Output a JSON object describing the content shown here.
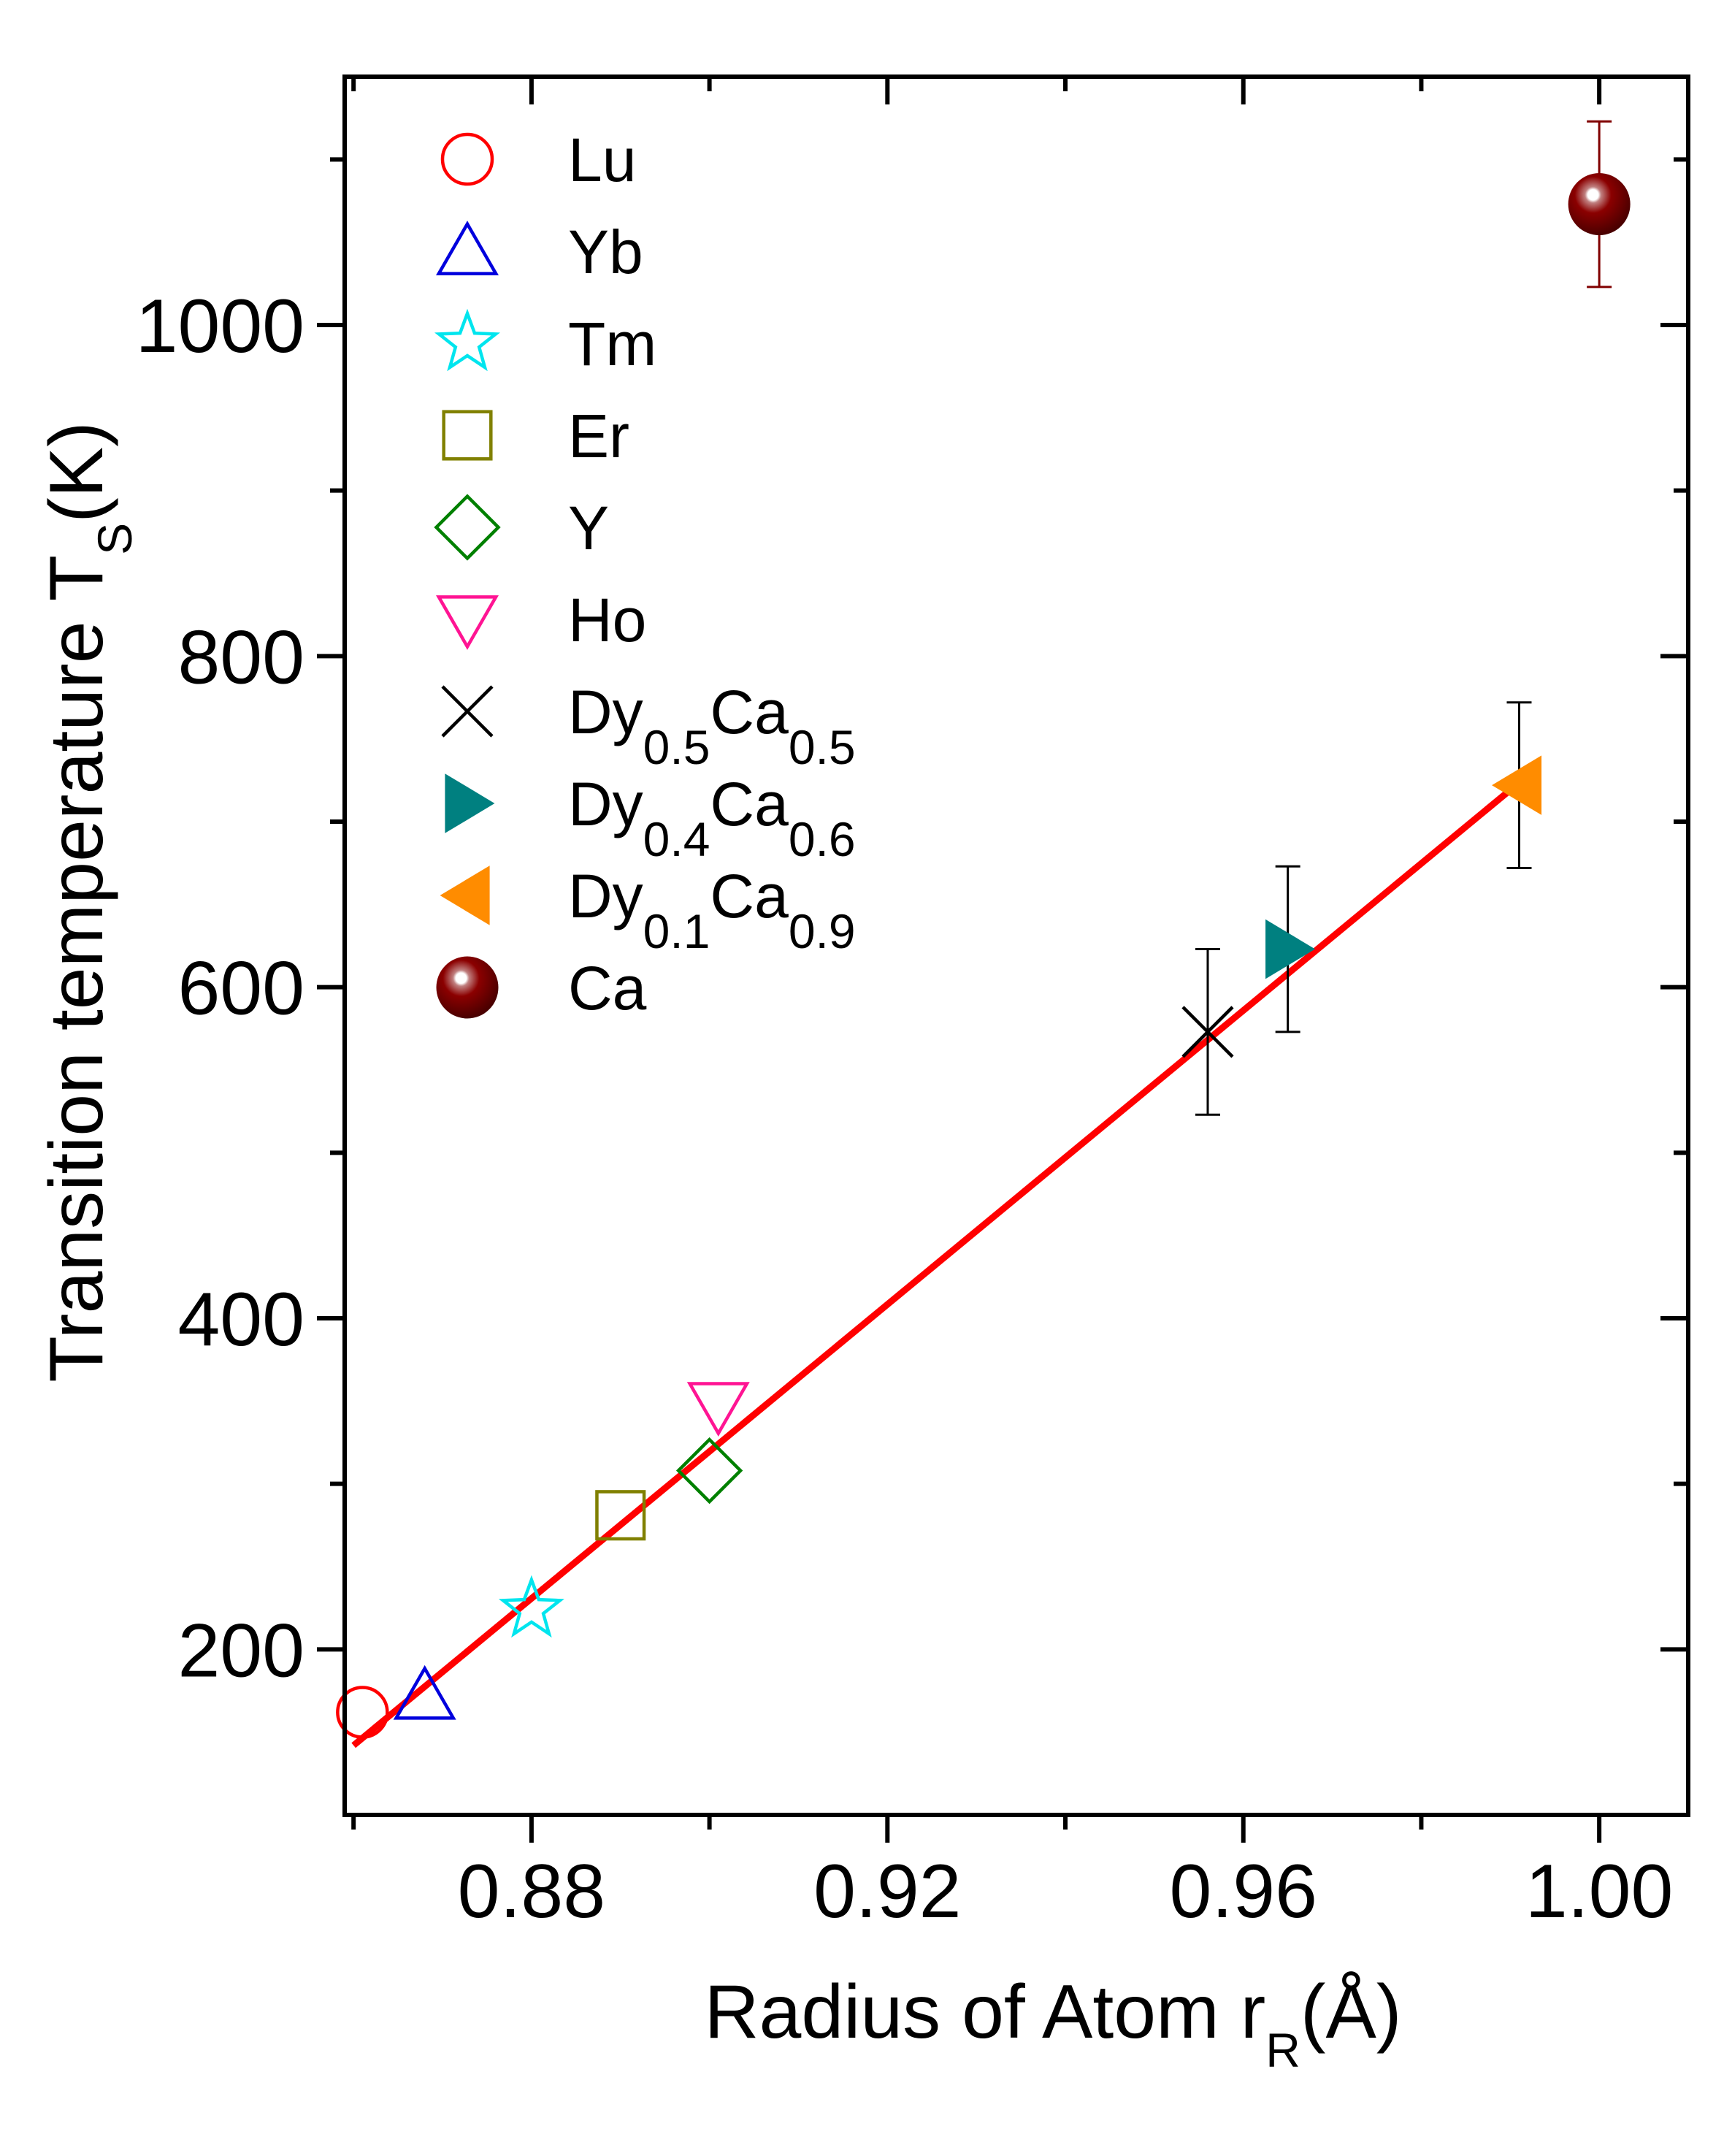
{
  "chart_data": {
    "type": "scatter",
    "xlabel": {
      "main": "Radius of Atom r",
      "sub": "R",
      "tail": "(Å)"
    },
    "ylabel": {
      "main": "Transition temperature T",
      "sub": "S",
      "tail": "(K)"
    },
    "xlim": [
      0.859,
      1.01
    ],
    "ylim": [
      100,
      1150
    ],
    "xticks": [
      0.88,
      0.92,
      0.96,
      1.0
    ],
    "xtick_labels": [
      "0.88",
      "0.92",
      "0.96",
      "1.00"
    ],
    "xminor": [
      0.86,
      0.9,
      0.94,
      0.98
    ],
    "yticks": [
      200,
      400,
      600,
      800,
      1000
    ],
    "ytick_labels": [
      "200",
      "400",
      "600",
      "800",
      "1000"
    ],
    "yminor": [
      300,
      500,
      700,
      900,
      1100
    ],
    "legend_position": "top-left",
    "series": [
      {
        "name": "Lu",
        "label": {
          "base": "Lu"
        },
        "marker": "circle-open",
        "color": "#ff0000",
        "x": 0.861,
        "y": 162
      },
      {
        "name": "Yb",
        "label": {
          "base": "Yb"
        },
        "marker": "triangle-up-open",
        "color": "#0000dd",
        "x": 0.868,
        "y": 172
      },
      {
        "name": "Tm",
        "label": {
          "base": "Tm"
        },
        "marker": "star-open",
        "color": "#00e5ee",
        "x": 0.88,
        "y": 224
      },
      {
        "name": "Er",
        "label": {
          "base": "Er"
        },
        "marker": "square-open",
        "color": "#808000",
        "x": 0.89,
        "y": 281
      },
      {
        "name": "Y",
        "label": {
          "base": "Y"
        },
        "marker": "diamond-open",
        "color": "#008000",
        "x": 0.9,
        "y": 308
      },
      {
        "name": "Ho",
        "label": {
          "base": "Ho"
        },
        "marker": "triangle-down-open",
        "color": "#ff1493",
        "x": 0.901,
        "y": 347
      },
      {
        "name": "Dy0.5Ca0.5",
        "label": {
          "base": "Dy",
          "s1": "0.5",
          "mid": "Ca",
          "s2": "0.5"
        },
        "marker": "x",
        "color": "#000000",
        "x": 0.956,
        "y": 573,
        "err": 50,
        "errcolor": "#000000"
      },
      {
        "name": "Dy0.4Ca0.6",
        "label": {
          "base": "Dy",
          "s1": "0.4",
          "mid": "Ca",
          "s2": "0.6"
        },
        "marker": "triangle-right-filled",
        "color": "#008080",
        "x": 0.965,
        "y": 623,
        "err": 50,
        "errcolor": "#000000"
      },
      {
        "name": "Dy0.1Ca0.9",
        "label": {
          "base": "Dy",
          "s1": "0.1",
          "mid": "Ca",
          "s2": "0.9"
        },
        "marker": "triangle-left-filled",
        "color": "#ff8c00",
        "x": 0.991,
        "y": 722,
        "err": 50,
        "errcolor": "#000000"
      },
      {
        "name": "Ca",
        "label": {
          "base": "Ca"
        },
        "marker": "sphere",
        "color": "#800000",
        "x": 1.0,
        "y": 1073,
        "err": 50,
        "errcolor": "#800000"
      }
    ],
    "fit_line": {
      "color": "#ff0000",
      "x": [
        0.86,
        0.992
      ],
      "y": [
        142,
        728
      ]
    }
  }
}
